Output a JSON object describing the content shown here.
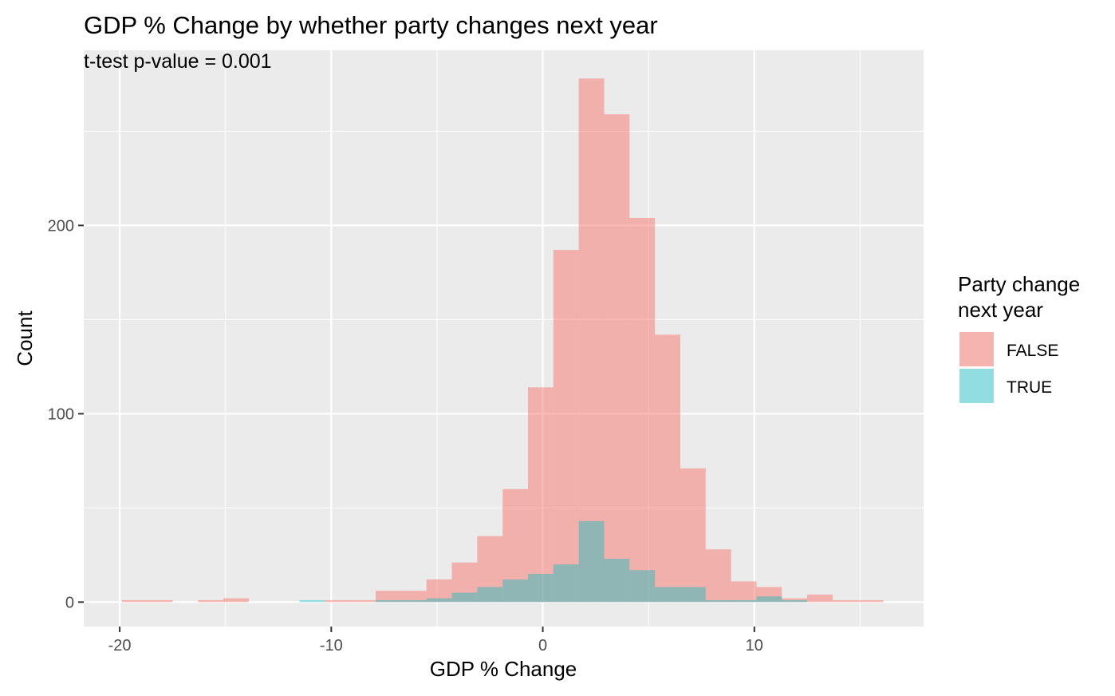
{
  "chart_data": {
    "type": "bar",
    "title": "GDP % Change by whether party changes next year",
    "subtitle": "t-test p-value = 0.001",
    "xlabel": "GDP % Change",
    "ylabel": "Count",
    "xlim": [
      -21.7,
      18.0
    ],
    "ylim": [
      -13,
      293
    ],
    "x_ticks": [
      -20,
      -10,
      0,
      10
    ],
    "x_tick_labels": [
      "-20",
      "-10",
      "0",
      "10"
    ],
    "y_ticks": [
      0,
      100,
      200
    ],
    "y_tick_labels": [
      "0",
      "100",
      "200"
    ],
    "grid": true,
    "legend": {
      "title_line1": "Party change",
      "title_line2": "next year",
      "position": "right",
      "entries": [
        "FALSE",
        "TRUE"
      ]
    },
    "series": [
      {
        "name": "FALSE",
        "color": "#F8766D",
        "bins": [
          {
            "x0": -19.9,
            "x1": -18.7,
            "count": 1
          },
          {
            "x0": -18.7,
            "x1": -17.5,
            "count": 1
          },
          {
            "x0": -16.3,
            "x1": -15.1,
            "count": 1
          },
          {
            "x0": -15.1,
            "x1": -13.9,
            "count": 2
          },
          {
            "x0": -10.3,
            "x1": -9.1,
            "count": 1
          },
          {
            "x0": -9.1,
            "x1": -7.9,
            "count": 1
          },
          {
            "x0": -7.9,
            "x1": -6.7,
            "count": 6
          },
          {
            "x0": -6.7,
            "x1": -5.5,
            "count": 6
          },
          {
            "x0": -5.5,
            "x1": -4.3,
            "count": 12
          },
          {
            "x0": -4.3,
            "x1": -3.1,
            "count": 21
          },
          {
            "x0": -3.1,
            "x1": -1.9,
            "count": 35
          },
          {
            "x0": -1.9,
            "x1": -0.7,
            "count": 60
          },
          {
            "x0": -0.7,
            "x1": 0.5,
            "count": 114
          },
          {
            "x0": 0.5,
            "x1": 1.7,
            "count": 187
          },
          {
            "x0": 1.7,
            "x1": 2.9,
            "count": 278
          },
          {
            "x0": 2.9,
            "x1": 4.1,
            "count": 259
          },
          {
            "x0": 4.1,
            "x1": 5.3,
            "count": 204
          },
          {
            "x0": 5.3,
            "x1": 6.5,
            "count": 142
          },
          {
            "x0": 6.5,
            "x1": 7.7,
            "count": 71
          },
          {
            "x0": 7.7,
            "x1": 8.9,
            "count": 28
          },
          {
            "x0": 8.9,
            "x1": 10.1,
            "count": 11
          },
          {
            "x0": 10.1,
            "x1": 11.3,
            "count": 8
          },
          {
            "x0": 11.3,
            "x1": 12.5,
            "count": 2
          },
          {
            "x0": 12.5,
            "x1": 13.7,
            "count": 4
          },
          {
            "x0": 13.7,
            "x1": 14.9,
            "count": 1
          },
          {
            "x0": 14.9,
            "x1": 16.1,
            "count": 1
          }
        ]
      },
      {
        "name": "TRUE",
        "color": "#00BFC4",
        "bins": [
          {
            "x0": -11.5,
            "x1": -10.3,
            "count": 1
          },
          {
            "x0": -7.9,
            "x1": -6.7,
            "count": 1
          },
          {
            "x0": -6.7,
            "x1": -5.5,
            "count": 1
          },
          {
            "x0": -5.5,
            "x1": -4.3,
            "count": 2
          },
          {
            "x0": -4.3,
            "x1": -3.1,
            "count": 5
          },
          {
            "x0": -3.1,
            "x1": -1.9,
            "count": 8
          },
          {
            "x0": -1.9,
            "x1": -0.7,
            "count": 12
          },
          {
            "x0": -0.7,
            "x1": 0.5,
            "count": 15
          },
          {
            "x0": 0.5,
            "x1": 1.7,
            "count": 20
          },
          {
            "x0": 1.7,
            "x1": 2.9,
            "count": 43
          },
          {
            "x0": 2.9,
            "x1": 4.1,
            "count": 23
          },
          {
            "x0": 4.1,
            "x1": 5.3,
            "count": 17
          },
          {
            "x0": 5.3,
            "x1": 6.5,
            "count": 8
          },
          {
            "x0": 6.5,
            "x1": 7.7,
            "count": 8
          },
          {
            "x0": 7.7,
            "x1": 8.9,
            "count": 1
          },
          {
            "x0": 8.9,
            "x1": 10.1,
            "count": 1
          },
          {
            "x0": 10.1,
            "x1": 11.3,
            "count": 3
          },
          {
            "x0": 11.3,
            "x1": 12.5,
            "count": 1
          }
        ]
      }
    ]
  }
}
